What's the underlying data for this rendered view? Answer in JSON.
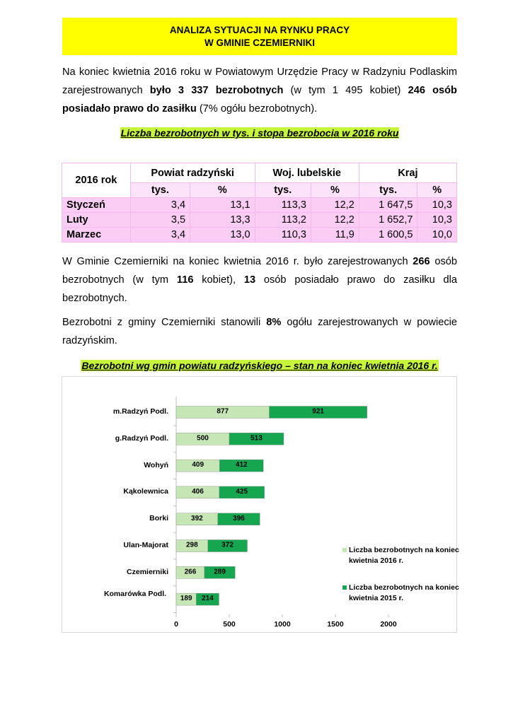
{
  "header": {
    "lines": [
      "ANALIZA SYTUACJI NA RYNKU PRACY",
      "W GMINIE CZEMIERNIKI"
    ]
  },
  "paragraphs": [
    [
      {
        "text": "Na koniec kwietnia 2016 roku w Powiatowym Urzędzie Pracy w Radzyniu Podlaskim zarejestrowanych ",
        "bold": false
      },
      {
        "text": "było 3 337 bezrobotnych",
        "bold": true
      },
      {
        "text": " (w tym 1 495 kobiet) ",
        "bold": false
      },
      {
        "text": "246 osób posiadało prawo do zasiłku",
        "bold": true
      },
      {
        "text": " (7% ogółu bezrobotnych).",
        "bold": false
      }
    ],
    [
      {
        "text": "W Gminie Czemierniki na koniec kwietnia 2016 r. było zarejestrowanych ",
        "bold": false
      },
      {
        "text": "266",
        "bold": true
      },
      {
        "text": " osób bezrobotnych (w tym ",
        "bold": false
      },
      {
        "text": "116",
        "bold": true
      },
      {
        "text": " kobiet), ",
        "bold": false
      },
      {
        "text": "13",
        "bold": true
      },
      {
        "text": " osób posiadało prawo do zasiłku dla bezrobotnych.",
        "bold": false
      }
    ],
    [
      {
        "text": "Bezrobotni z gminy Czemierniki stanowili ",
        "bold": false
      },
      {
        "text": "8%",
        "bold": true
      },
      {
        "text": " ogółu zarejestrowanych w powiecie radzyńskim.",
        "bold": false
      }
    ]
  ],
  "table": {
    "title": "Liczba bezrobotnych w tys. i stopa bezrobocia w 2016 roku",
    "header_top": [
      "2016 rok",
      "Powiat radzyński",
      "Woj. lubelskie",
      "Kraj"
    ],
    "header_sub": [
      "tys.",
      "%",
      "tys.",
      "%",
      "tys.",
      "%"
    ],
    "rows": [
      [
        "Styczeń",
        "3,4",
        "13,1",
        "113,3",
        "12,2",
        "1 647,5",
        "10,3"
      ],
      [
        "Luty",
        "3,5",
        "13,3",
        "113,2",
        "12,2",
        "1 652,7",
        "10,3"
      ],
      [
        "Marzec",
        "3,4",
        "13,0",
        "110,3",
        "11,9",
        "1 600,5",
        "10,0"
      ]
    ]
  },
  "chart_data": {
    "type": "bar",
    "orientation": "horizontal",
    "stacked": true,
    "title": "Bezrobotni wg gmin powiatu radzyńskiego  – stan na koniec kwietnia 2016 r.",
    "categories": [
      "m.Radzyń Podl.",
      "g.Radzyń Podl.",
      "Wohyń",
      "Kąkolewnica",
      "Borki",
      "Ulan-Majorat",
      "Czemierniki",
      "Komarówka Podl."
    ],
    "series": [
      {
        "name": "Liczba bezrobotnych na koniec kwietnia 2016 r.",
        "color": "#c6e6b5",
        "values": [
          877,
          500,
          409,
          406,
          392,
          298,
          266,
          189
        ]
      },
      {
        "name": "Liczba bezrobotnych na koniec kwietnia 2015 r.",
        "color": "#16a650",
        "values": [
          921,
          513,
          412,
          425,
          396,
          372,
          289,
          214
        ]
      }
    ],
    "xlim": [
      0,
      2000
    ],
    "xticks": [
      0,
      500,
      1000,
      1500,
      2000
    ]
  }
}
